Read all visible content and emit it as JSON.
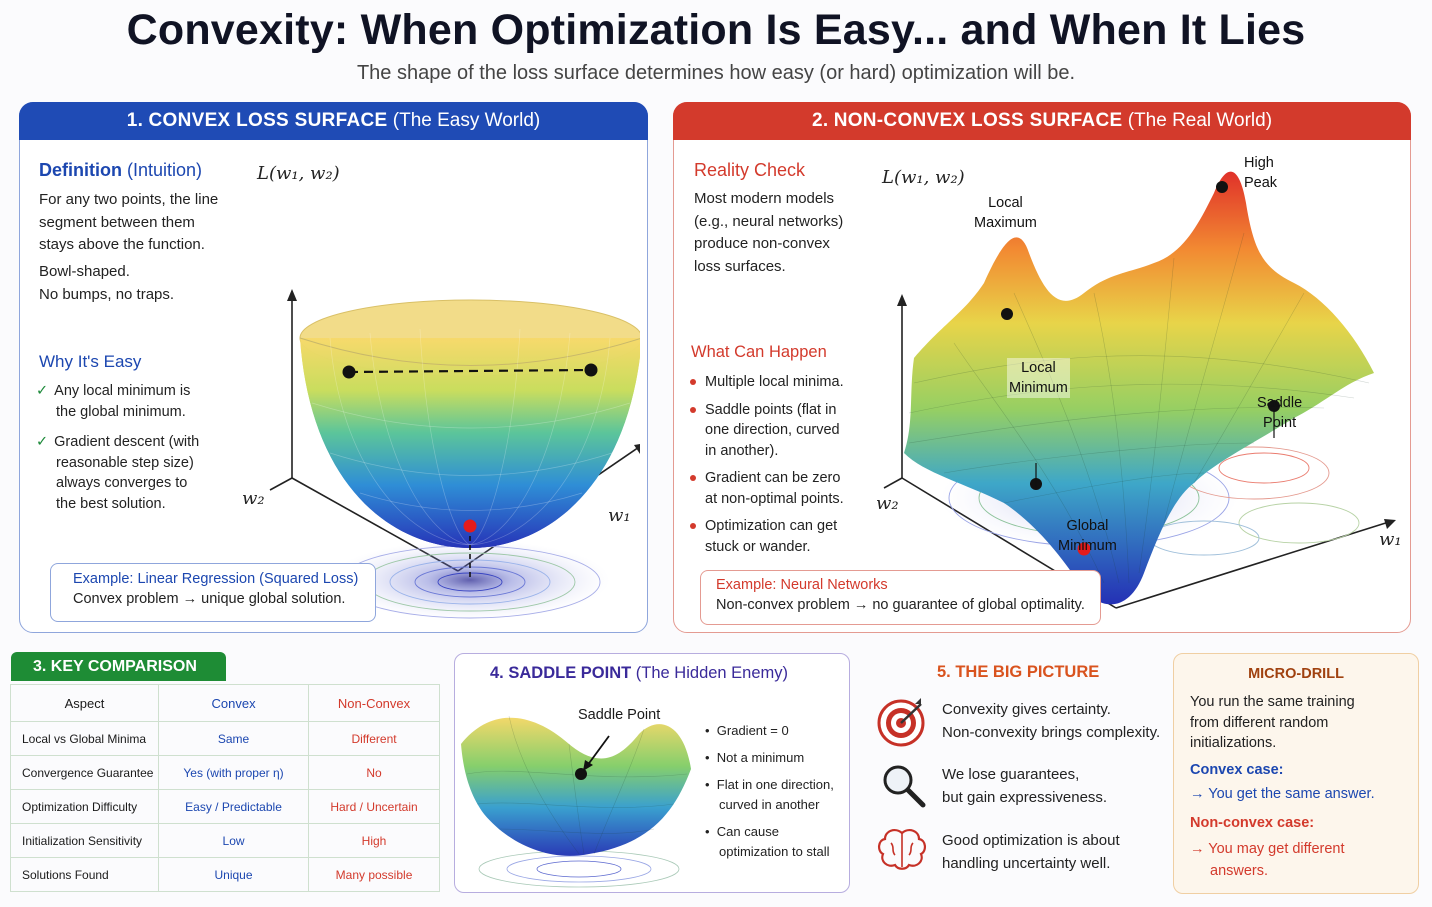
{
  "title": "Convexity: When Optimization Is Easy... and When It Lies",
  "subtitle": "The shape of the loss surface determines how easy (or hard) optimization will be.",
  "panel1": {
    "num": "1.",
    "title": "CONVEX LOSS SURFACE",
    "subtitle": "(The Easy World)",
    "def_head": "Definition",
    "def_head2": "(Intuition)",
    "def_lines": [
      "For any two points, the line",
      "segment between them",
      "stays above the function."
    ],
    "bowl_lines": [
      "Bowl-shaped.",
      "No bumps, no traps."
    ],
    "why_head": "Why It's Easy",
    "why1": [
      "Any local minimum is",
      "the global minimum."
    ],
    "why2": [
      "Gradient descent (with",
      "reasonable step size)",
      "always converges to",
      "the best solution."
    ],
    "example_title": "Example: Linear Regression (Squared Loss)",
    "example_text": "Convex problem → unique global solution.",
    "axis_z": "L(w₁, w₂)",
    "axis_w1": "w₁",
    "axis_w2": "w₂"
  },
  "panel2": {
    "num": "2.",
    "title": "NON-CONVEX LOSS SURFACE",
    "subtitle": "(The Real World)",
    "rc_head": "Reality Check",
    "rc_lines": [
      "Most modern models",
      "(e.g., neural networks)",
      "produce non-convex",
      "loss surfaces."
    ],
    "wch_head": "What Can Happen",
    "bullets": [
      [
        "Multiple local minima."
      ],
      [
        "Saddle points (flat in",
        "one direction, curved",
        "in another)."
      ],
      [
        "Gradient can be zero",
        "at non-optimal points."
      ],
      [
        "Optimization can get",
        "stuck or wander."
      ]
    ],
    "example_title": "Example: Neural Networks",
    "example_text": "Non-convex problem → no guarantee of global optimality.",
    "labels": {
      "high_peak": [
        "High",
        "Peak"
      ],
      "local_max": [
        "Local",
        "Maximum"
      ],
      "local_min": [
        "Local",
        "Minimum"
      ],
      "saddle": [
        "Saddle",
        "Point"
      ],
      "global_min": [
        "Global",
        "Minimum"
      ]
    },
    "axis_z": "L(w₁, w₂)",
    "axis_w1": "w₁",
    "axis_w2": "w₂"
  },
  "comparison": {
    "heading": "3.  KEY COMPARISON",
    "headers": [
      "Aspect",
      "Convex",
      "Non-Convex"
    ],
    "rows": [
      [
        "Local vs Global Minima",
        "Same",
        "Different"
      ],
      [
        "Convergence Guarantee",
        "Yes (with proper η)",
        "No"
      ],
      [
        "Optimization Difficulty",
        "Easy / Predictable",
        "Hard / Uncertain"
      ],
      [
        "Initialization Sensitivity",
        "Low",
        "High"
      ],
      [
        "Solutions Found",
        "Unique",
        "Many possible"
      ]
    ]
  },
  "saddle": {
    "num": "4.",
    "title": "SADDLE POINT",
    "subtitle": "(The Hidden Enemy)",
    "label": "Saddle Point",
    "bullets": [
      [
        "Gradient = 0"
      ],
      [
        "Not a minimum"
      ],
      [
        "Flat in one direction,",
        "curved in another"
      ],
      [
        "Can cause",
        "optimization to stall"
      ]
    ]
  },
  "big_picture": {
    "heading": "5.  THE BIG PICTURE",
    "items": [
      {
        "icon": "target-icon",
        "lines": [
          "Convexity gives certainty.",
          "Non-convexity brings complexity."
        ]
      },
      {
        "icon": "magnifier-icon",
        "lines": [
          "We lose guarantees,",
          "but gain expressiveness."
        ]
      },
      {
        "icon": "brain-icon",
        "lines": [
          "Good optimization is about",
          "handling uncertainty well."
        ]
      }
    ]
  },
  "micro_drill": {
    "heading": "MICRO-DRILL",
    "intro": [
      "You run the same training",
      "from different random",
      "initializations."
    ],
    "convex_head": "Convex case:",
    "convex_text": "→ You get the same answer.",
    "nonconvex_head": "Non-convex case:",
    "nonconvex_text": [
      "→ You may get different",
      "answers."
    ]
  },
  "colors": {
    "blue": "#1f4bb5",
    "red": "#d33a2c",
    "green": "#1e8c35",
    "purple": "#3a2a9a",
    "orange": "#d9531e"
  }
}
